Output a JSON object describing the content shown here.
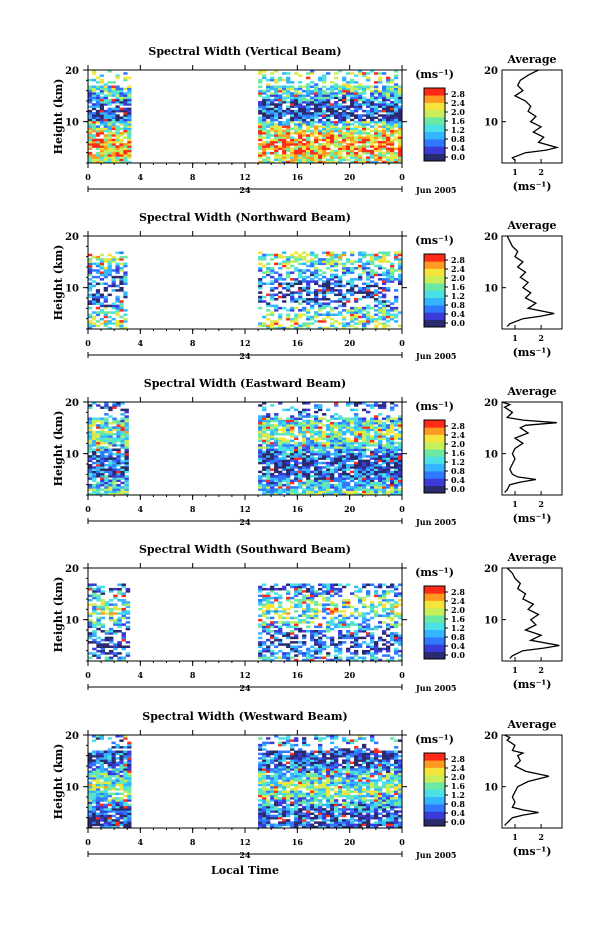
{
  "chart_data": [
    {
      "type": "heatmap",
      "title": "Spectral Width (Vertical Beam)",
      "ylabel": "Height (km)",
      "ylim": [
        2,
        20
      ],
      "yticks": [
        "20",
        "10"
      ],
      "xticks": [
        "0",
        "4",
        "8",
        "12",
        "16",
        "20",
        "0"
      ],
      "x_sub_label": "24",
      "date_label": "Jun 2005",
      "data_hours": [
        [
          0,
          3.3
        ],
        [
          13,
          24
        ]
      ],
      "colorbar": {
        "unit": "(ms⁻¹)",
        "ticks": [
          "2.8",
          "2.4",
          "2.0",
          "1.6",
          "1.2",
          "0.8",
          "0.4",
          "0.0"
        ]
      },
      "average": {
        "title": "Average",
        "xticks": [
          "1",
          "2"
        ],
        "xlabel": "(ms⁻¹)",
        "yticks": [
          "20",
          "10"
        ],
        "profile": [
          [
            1.9,
            20
          ],
          [
            1.5,
            19
          ],
          [
            1.2,
            18
          ],
          [
            1.1,
            17
          ],
          [
            1.3,
            16
          ],
          [
            1.0,
            15
          ],
          [
            1.4,
            14
          ],
          [
            1.6,
            13
          ],
          [
            1.5,
            12
          ],
          [
            1.8,
            11
          ],
          [
            1.6,
            10
          ],
          [
            2.0,
            9
          ],
          [
            1.7,
            8
          ],
          [
            2.1,
            7
          ],
          [
            1.9,
            6
          ],
          [
            2.6,
            5
          ],
          [
            2.2,
            4.5
          ],
          [
            1.4,
            4
          ],
          [
            0.9,
            3
          ],
          [
            1.0,
            2.5
          ]
        ]
      }
    },
    {
      "type": "heatmap",
      "title": "Spectral Width (Northward Beam)",
      "ylabel": "Height (km)",
      "ylim": [
        2,
        20
      ],
      "yticks": [
        "20",
        "10"
      ],
      "xticks": [
        "0",
        "4",
        "8",
        "12",
        "16",
        "20",
        "0"
      ],
      "x_sub_label": "24",
      "date_label": "Jun 2005",
      "data_hours": [
        [
          0,
          3.0
        ],
        [
          13,
          24
        ]
      ],
      "colorbar": {
        "unit": "(ms⁻¹)",
        "ticks": [
          "2.8",
          "2.4",
          "2.0",
          "1.6",
          "1.2",
          "0.8",
          "0.4",
          "0.0"
        ]
      },
      "average": {
        "title": "Average",
        "xticks": [
          "1",
          "2"
        ],
        "xlabel": "(ms⁻¹)",
        "yticks": [
          "20",
          "10"
        ],
        "profile": [
          [
            0.7,
            20
          ],
          [
            0.8,
            19
          ],
          [
            0.9,
            18
          ],
          [
            1.1,
            17
          ],
          [
            1.0,
            16
          ],
          [
            1.3,
            15
          ],
          [
            1.1,
            14
          ],
          [
            1.4,
            13
          ],
          [
            1.2,
            12
          ],
          [
            1.5,
            11
          ],
          [
            1.3,
            10
          ],
          [
            1.6,
            9
          ],
          [
            1.4,
            8
          ],
          [
            1.8,
            7
          ],
          [
            1.5,
            6
          ],
          [
            2.5,
            5
          ],
          [
            2.0,
            4.5
          ],
          [
            1.3,
            4
          ],
          [
            0.8,
            3
          ],
          [
            0.7,
            2.5
          ]
        ]
      }
    },
    {
      "type": "heatmap",
      "title": "Spectral Width (Eastward Beam)",
      "ylabel": "Height (km)",
      "ylim": [
        2,
        20
      ],
      "yticks": [
        "20",
        "10"
      ],
      "xticks": [
        "0",
        "4",
        "8",
        "12",
        "16",
        "20",
        "0"
      ],
      "x_sub_label": "24",
      "date_label": "Jun 2005",
      "data_hours": [
        [
          0,
          3.1
        ],
        [
          13,
          24
        ]
      ],
      "colorbar": {
        "unit": "(ms⁻¹)",
        "ticks": [
          "2.8",
          "2.4",
          "2.0",
          "1.6",
          "1.2",
          "0.8",
          "0.4",
          "0.0"
        ]
      },
      "average": {
        "title": "Average",
        "xticks": [
          "1",
          "2"
        ],
        "xlabel": "(ms⁻¹)",
        "yticks": [
          "20",
          "10"
        ],
        "profile": [
          [
            0.5,
            20
          ],
          [
            0.8,
            19.5
          ],
          [
            0.6,
            19
          ],
          [
            0.9,
            18
          ],
          [
            0.7,
            17
          ],
          [
            1.3,
            16.5
          ],
          [
            2.6,
            16
          ],
          [
            1.4,
            15.5
          ],
          [
            1.2,
            15
          ],
          [
            1.5,
            14
          ],
          [
            1.0,
            13
          ],
          [
            1.3,
            12
          ],
          [
            1.0,
            11
          ],
          [
            0.9,
            10
          ],
          [
            1.0,
            9
          ],
          [
            0.9,
            8
          ],
          [
            0.8,
            7
          ],
          [
            0.9,
            6
          ],
          [
            1.1,
            5.5
          ],
          [
            1.8,
            5
          ],
          [
            1.2,
            4.5
          ],
          [
            0.8,
            4
          ],
          [
            0.7,
            3
          ],
          [
            0.6,
            2.5
          ]
        ]
      }
    },
    {
      "type": "heatmap",
      "title": "Spectral Width (Southward Beam)",
      "ylabel": "Height (km)",
      "ylim": [
        2,
        20
      ],
      "yticks": [
        "20",
        "10"
      ],
      "xticks": [
        "0",
        "4",
        "8",
        "12",
        "16",
        "20",
        "0"
      ],
      "x_sub_label": "24",
      "date_label": "Jun 2005",
      "data_hours": [
        [
          0,
          3.2
        ],
        [
          13,
          24
        ]
      ],
      "colorbar": {
        "unit": "(ms⁻¹)",
        "ticks": [
          "2.8",
          "2.4",
          "2.0",
          "1.6",
          "1.2",
          "0.8",
          "0.4",
          "0.0"
        ]
      },
      "average": {
        "title": "Average",
        "xticks": [
          "1",
          "2"
        ],
        "xlabel": "(ms⁻¹)",
        "yticks": [
          "20",
          "10"
        ],
        "profile": [
          [
            0.7,
            20
          ],
          [
            0.9,
            19
          ],
          [
            1.0,
            18
          ],
          [
            1.2,
            17
          ],
          [
            1.1,
            16
          ],
          [
            1.4,
            15
          ],
          [
            1.3,
            14
          ],
          [
            1.7,
            13
          ],
          [
            1.5,
            12
          ],
          [
            1.9,
            11
          ],
          [
            1.6,
            10
          ],
          [
            1.8,
            9
          ],
          [
            1.4,
            8
          ],
          [
            2.0,
            7
          ],
          [
            1.6,
            6
          ],
          [
            2.7,
            5
          ],
          [
            2.1,
            4.5
          ],
          [
            1.3,
            4
          ],
          [
            0.9,
            3
          ],
          [
            0.8,
            2.5
          ]
        ]
      }
    },
    {
      "type": "heatmap",
      "title": "Spectral Width (Westward Beam)",
      "ylabel": "Height (km)",
      "xlabel": "Local Time",
      "ylim": [
        2,
        20
      ],
      "yticks": [
        "20",
        "10"
      ],
      "xticks": [
        "0",
        "4",
        "8",
        "12",
        "16",
        "20",
        "0"
      ],
      "x_sub_label": "24",
      "date_label": "Jun 2005",
      "data_hours": [
        [
          0,
          3.3
        ],
        [
          13,
          24
        ]
      ],
      "colorbar": {
        "unit": "(ms⁻¹)",
        "ticks": [
          "2.8",
          "2.4",
          "2.0",
          "1.6",
          "1.2",
          "0.8",
          "0.4",
          "0.0"
        ]
      },
      "average": {
        "title": "Average",
        "xticks": [
          "1",
          "2"
        ],
        "xlabel": "(ms⁻¹)",
        "yticks": [
          "20",
          "10"
        ],
        "profile": [
          [
            0.6,
            20
          ],
          [
            0.8,
            19.5
          ],
          [
            0.7,
            19
          ],
          [
            1.0,
            18
          ],
          [
            0.9,
            17
          ],
          [
            1.3,
            16.5
          ],
          [
            1.1,
            16
          ],
          [
            1.2,
            15
          ],
          [
            1.0,
            14
          ],
          [
            1.4,
            13
          ],
          [
            2.3,
            12
          ],
          [
            1.5,
            11
          ],
          [
            1.1,
            10
          ],
          [
            1.0,
            9
          ],
          [
            0.9,
            8
          ],
          [
            1.0,
            7
          ],
          [
            0.9,
            6
          ],
          [
            1.3,
            5.5
          ],
          [
            1.9,
            5
          ],
          [
            1.3,
            4.5
          ],
          [
            0.9,
            4
          ],
          [
            0.7,
            3
          ],
          [
            0.6,
            2.5
          ]
        ]
      }
    }
  ]
}
